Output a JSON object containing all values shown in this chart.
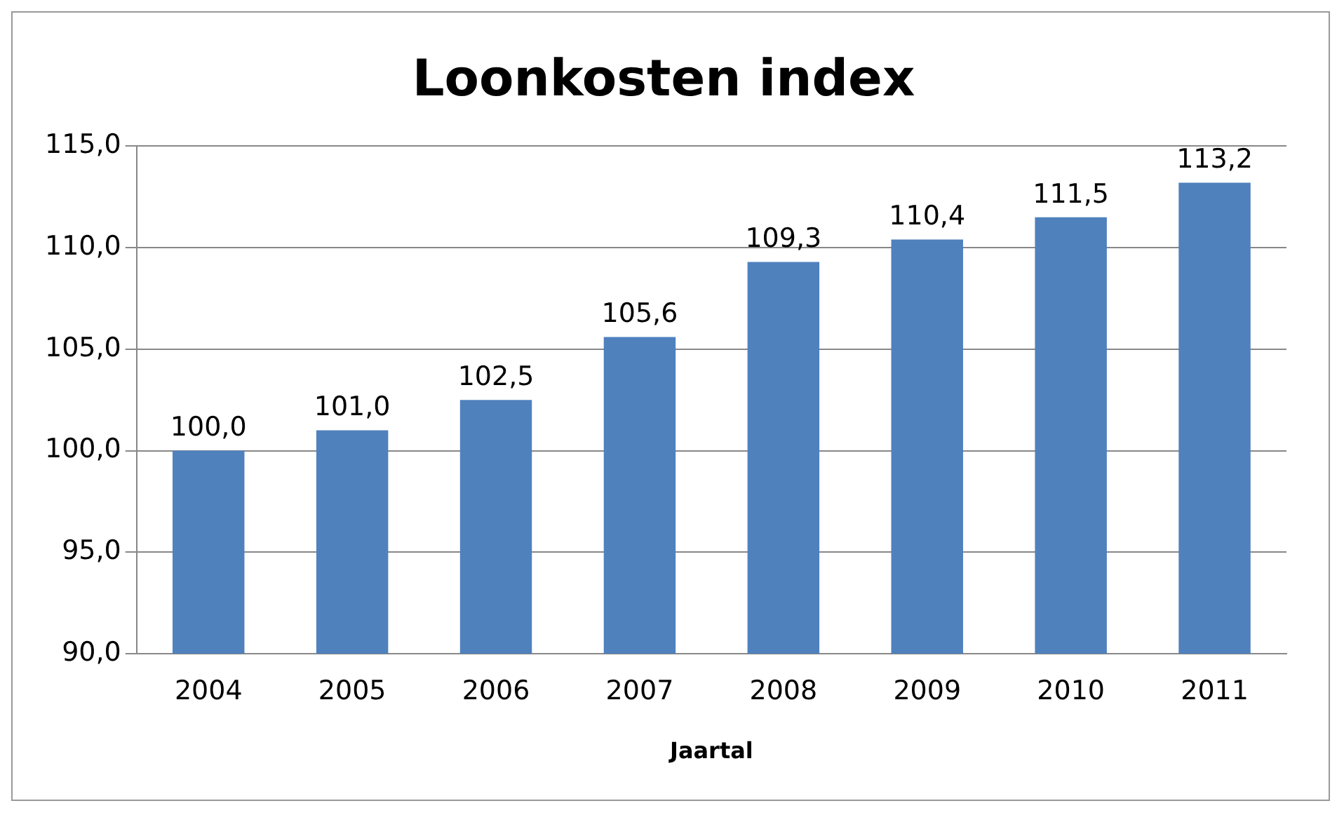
{
  "chart_data": {
    "type": "bar",
    "title": "Loonkosten index",
    "xlabel": "Jaartal",
    "categories": [
      "2004",
      "2005",
      "2006",
      "2007",
      "2008",
      "2009",
      "2010",
      "2011"
    ],
    "values": [
      100.0,
      101.0,
      102.5,
      105.6,
      109.3,
      110.4,
      111.5,
      113.2
    ],
    "value_labels": [
      "100,0",
      "101,0",
      "102,5",
      "105,6",
      "109,3",
      "110,4",
      "111,5",
      "113,2"
    ],
    "color": "#4f81bd",
    "ylim": [
      90,
      115
    ],
    "yticks": [
      {
        "value": 90,
        "label": "90,0"
      },
      {
        "value": 95,
        "label": "95,0"
      },
      {
        "value": 100,
        "label": "100,0"
      },
      {
        "value": 105,
        "label": "105,0"
      },
      {
        "value": 110,
        "label": "110,0"
      },
      {
        "value": 115,
        "label": "115,0"
      }
    ],
    "grid": "y",
    "legend": false
  }
}
